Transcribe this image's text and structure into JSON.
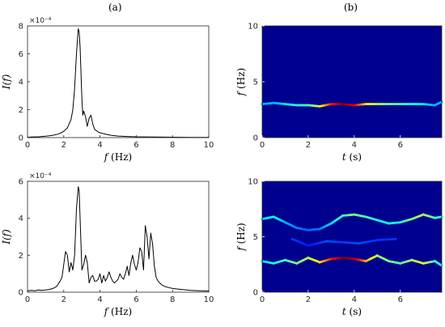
{
  "panels": {
    "left": "(a)",
    "right": "(b)"
  },
  "chart_data": [
    {
      "type": "line",
      "title": "",
      "xlabel": "f (Hz)",
      "ylabel": "I(f)",
      "xlim": [
        0,
        10
      ],
      "ylim": [
        0,
        8
      ],
      "xticks": [
        0,
        2,
        4,
        6,
        8,
        10
      ],
      "yticks": [
        0,
        2,
        4,
        6,
        8
      ],
      "exponent_label": "×10⁻⁴",
      "color": "#000000",
      "series": [
        {
          "x": [
            0,
            0.2,
            0.4,
            0.6,
            0.8,
            1.0,
            1.2,
            1.4,
            1.6,
            1.8,
            2.0,
            2.2,
            2.4,
            2.5,
            2.6,
            2.7,
            2.8,
            2.85,
            2.9,
            3.0,
            3.05,
            3.1,
            3.2,
            3.3,
            3.4,
            3.5,
            3.6,
            3.7,
            3.8,
            3.9,
            4.0,
            4.2,
            4.4,
            4.6,
            4.8,
            5.0,
            5.5,
            6.0,
            6.5,
            7.0,
            8.0,
            9.0,
            10.0
          ],
          "y": [
            0.02,
            0.04,
            0.05,
            0.06,
            0.08,
            0.1,
            0.13,
            0.17,
            0.22,
            0.3,
            0.45,
            0.7,
            1.3,
            2.0,
            3.5,
            6.0,
            7.8,
            7.6,
            6.5,
            2.8,
            1.6,
            1.9,
            1.5,
            0.8,
            1.4,
            1.6,
            1.0,
            0.6,
            0.5,
            0.4,
            0.35,
            0.28,
            0.22,
            0.17,
            0.14,
            0.11,
            0.08,
            0.06,
            0.05,
            0.04,
            0.03,
            0.02,
            0.02
          ]
        }
      ]
    },
    {
      "type": "heatmap",
      "title": "",
      "xlabel": "t (s)",
      "ylabel": "f (Hz)",
      "xlim": [
        0,
        7.8
      ],
      "ylim": [
        0,
        10
      ],
      "xticks": [
        0,
        2,
        4,
        6
      ],
      "yticks": [
        0,
        5,
        10
      ],
      "background": "#00008f",
      "ridges": [
        {
          "t": [
            0,
            0.5,
            1.0,
            1.5,
            2.0,
            2.5,
            3.0,
            3.5,
            4.0,
            4.5,
            5.0,
            5.5,
            6.0,
            6.5,
            7.0,
            7.5,
            7.8
          ],
          "f": [
            3.0,
            3.1,
            3.0,
            2.9,
            2.9,
            2.8,
            3.0,
            3.0,
            2.9,
            3.0,
            3.0,
            3.0,
            3.0,
            3.0,
            3.0,
            2.9,
            3.2
          ],
          "intensity": [
            0.3,
            0.3,
            0.35,
            0.4,
            0.45,
            0.6,
            0.85,
            1.0,
            0.9,
            0.65,
            0.55,
            0.5,
            0.45,
            0.4,
            0.35,
            0.3,
            0.3
          ]
        }
      ]
    },
    {
      "type": "line",
      "title": "",
      "xlabel": "f (Hz)",
      "ylabel": "I(f)",
      "xlim": [
        0,
        10
      ],
      "ylim": [
        0,
        6
      ],
      "xticks": [
        0,
        2,
        4,
        6,
        8,
        10
      ],
      "yticks": [
        0,
        2,
        4,
        6
      ],
      "exponent_label": "×10⁻⁴",
      "color": "#000000",
      "series": [
        {
          "x": [
            0,
            0.2,
            0.4,
            0.6,
            0.8,
            1.0,
            1.2,
            1.4,
            1.6,
            1.8,
            1.9,
            2.0,
            2.1,
            2.2,
            2.3,
            2.4,
            2.5,
            2.6,
            2.7,
            2.8,
            2.85,
            2.9,
            3.0,
            3.1,
            3.2,
            3.3,
            3.4,
            3.5,
            3.6,
            3.7,
            3.8,
            3.9,
            4.0,
            4.1,
            4.2,
            4.3,
            4.4,
            4.5,
            4.6,
            4.7,
            4.8,
            4.9,
            5.0,
            5.1,
            5.2,
            5.3,
            5.4,
            5.5,
            5.6,
            5.7,
            5.8,
            5.9,
            6.0,
            6.1,
            6.2,
            6.3,
            6.4,
            6.5,
            6.6,
            6.7,
            6.8,
            6.9,
            7.0,
            7.1,
            7.2,
            7.4,
            7.6,
            7.8,
            8.0,
            8.5,
            9.0,
            9.5,
            10.0
          ],
          "y": [
            0.08,
            0.1,
            0.08,
            0.12,
            0.1,
            0.12,
            0.15,
            0.2,
            0.3,
            0.6,
            0.8,
            1.5,
            2.2,
            2.0,
            1.1,
            1.6,
            1.2,
            2.0,
            4.5,
            5.7,
            5.5,
            4.0,
            1.2,
            1.5,
            2.0,
            1.6,
            0.5,
            0.8,
            0.9,
            0.6,
            0.6,
            0.7,
            1.0,
            0.5,
            0.9,
            0.6,
            0.8,
            1.1,
            0.8,
            0.6,
            0.5,
            0.6,
            0.7,
            1.0,
            0.8,
            0.7,
            1.0,
            1.4,
            0.9,
            1.6,
            2.0,
            1.5,
            1.2,
            1.6,
            2.4,
            2.2,
            1.2,
            3.6,
            3.0,
            1.8,
            3.2,
            2.6,
            1.4,
            0.8,
            0.6,
            0.4,
            0.3,
            0.25,
            0.2,
            0.15,
            0.1,
            0.08,
            0.06
          ]
        }
      ]
    },
    {
      "type": "heatmap",
      "title": "",
      "xlabel": "t (s)",
      "ylabel": "f (Hz)",
      "xlim": [
        0,
        7.8
      ],
      "ylim": [
        0,
        10
      ],
      "xticks": [
        0,
        2,
        4,
        6
      ],
      "yticks": [
        0,
        5,
        10
      ],
      "background": "#00008f",
      "ridges": [
        {
          "t": [
            0,
            0.5,
            1.0,
            1.5,
            2.0,
            2.5,
            3.0,
            3.5,
            4.0,
            4.5,
            5.0,
            5.5,
            6.0,
            6.5,
            7.0,
            7.5,
            7.8
          ],
          "f": [
            2.8,
            2.6,
            2.9,
            2.6,
            3.1,
            2.7,
            3.0,
            3.1,
            3.0,
            2.8,
            3.3,
            2.8,
            2.6,
            2.9,
            2.6,
            2.8,
            2.4
          ],
          "intensity": [
            0.35,
            0.4,
            0.45,
            0.5,
            0.55,
            0.65,
            0.85,
            1.0,
            0.95,
            0.7,
            0.55,
            0.5,
            0.45,
            0.55,
            0.6,
            0.45,
            0.4
          ]
        },
        {
          "t": [
            0,
            0.5,
            1.0,
            1.5,
            2.0,
            2.5,
            3.0,
            3.5,
            4.0,
            4.5,
            5.0,
            5.5,
            6.0,
            6.5,
            7.0,
            7.5,
            7.8
          ],
          "f": [
            6.6,
            6.8,
            6.3,
            5.8,
            5.6,
            5.7,
            6.2,
            6.9,
            7.0,
            6.8,
            6.5,
            6.2,
            6.3,
            6.6,
            7.0,
            6.7,
            6.8
          ],
          "intensity": [
            0.35,
            0.4,
            0.3,
            0.25,
            0.22,
            0.25,
            0.35,
            0.45,
            0.5,
            0.45,
            0.4,
            0.38,
            0.4,
            0.5,
            0.55,
            0.45,
            0.4
          ]
        },
        {
          "t": [
            1.3,
            2.0,
            2.8,
            3.5,
            4.2,
            5.0,
            5.8
          ],
          "f": [
            4.8,
            4.2,
            4.6,
            4.5,
            4.4,
            4.7,
            4.8
          ],
          "intensity": [
            0.18,
            0.15,
            0.2,
            0.18,
            0.2,
            0.17,
            0.18
          ]
        }
      ]
    }
  ]
}
